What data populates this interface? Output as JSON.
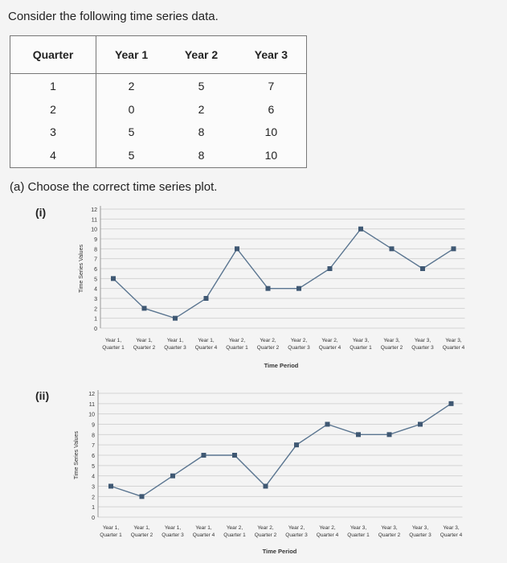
{
  "prompt": "Consider the following time series data.",
  "table": {
    "headers": [
      "Quarter",
      "Year 1",
      "Year 2",
      "Year 3"
    ],
    "rows": [
      [
        "1",
        "2",
        "5",
        "7"
      ],
      [
        "2",
        "0",
        "2",
        "6"
      ],
      [
        "3",
        "5",
        "8",
        "10"
      ],
      [
        "4",
        "5",
        "8",
        "10"
      ]
    ]
  },
  "question": "(a) Choose the correct time series plot.",
  "chart_data": [
    {
      "option_label": "(i)",
      "type": "line",
      "ylabel": "Time Series Values",
      "xlabel": "Time Period",
      "ylim": [
        0,
        12
      ],
      "y_ticks": [
        "0",
        "1",
        "2",
        "3",
        "4",
        "5",
        "6",
        "7",
        "8",
        "9",
        "10",
        "11",
        "12"
      ],
      "categories": [
        [
          "Year 1,",
          "Quarter 1"
        ],
        [
          "Year 1,",
          "Quarter 2"
        ],
        [
          "Year 1,",
          "Quarter 3"
        ],
        [
          "Year 1,",
          "Quarter 4"
        ],
        [
          "Year 2,",
          "Quarter 1"
        ],
        [
          "Year 2,",
          "Quarter 2"
        ],
        [
          "Year 2,",
          "Quarter 3"
        ],
        [
          "Year 2,",
          "Quarter 4"
        ],
        [
          "Year 3,",
          "Quarter 1"
        ],
        [
          "Year 3,",
          "Quarter 2"
        ],
        [
          "Year 3,",
          "Quarter 3"
        ],
        [
          "Year 3,",
          "Quarter 4"
        ]
      ],
      "values": [
        5,
        2,
        1,
        3,
        8,
        4,
        4,
        6,
        10,
        8,
        6,
        8
      ],
      "grid": true,
      "line_color": "#5a7590"
    },
    {
      "option_label": "(ii)",
      "type": "line",
      "ylabel": "Time Series Values",
      "xlabel": "Time Period",
      "ylim": [
        0,
        12
      ],
      "y_ticks": [
        "0",
        "1",
        "2",
        "3",
        "4",
        "5",
        "6",
        "7",
        "8",
        "9",
        "10",
        "11",
        "12"
      ],
      "categories": [
        [
          "Year 1,",
          "Quarter 1"
        ],
        [
          "Year 1,",
          "Quarter 2"
        ],
        [
          "Year 1,",
          "Quarter 3"
        ],
        [
          "Year 1,",
          "Quarter 4"
        ],
        [
          "Year 2,",
          "Quarter 1"
        ],
        [
          "Year 2,",
          "Quarter 2"
        ],
        [
          "Year 2,",
          "Quarter 3"
        ],
        [
          "Year 2,",
          "Quarter 4"
        ],
        [
          "Year 3,",
          "Quarter 1"
        ],
        [
          "Year 3,",
          "Quarter 2"
        ],
        [
          "Year 3,",
          "Quarter 3"
        ],
        [
          "Year 3,",
          "Quarter 4"
        ]
      ],
      "values": [
        3,
        2,
        4,
        6,
        6,
        3,
        7,
        9,
        8,
        8,
        9,
        11
      ],
      "grid": true,
      "line_color": "#5a7590"
    }
  ]
}
